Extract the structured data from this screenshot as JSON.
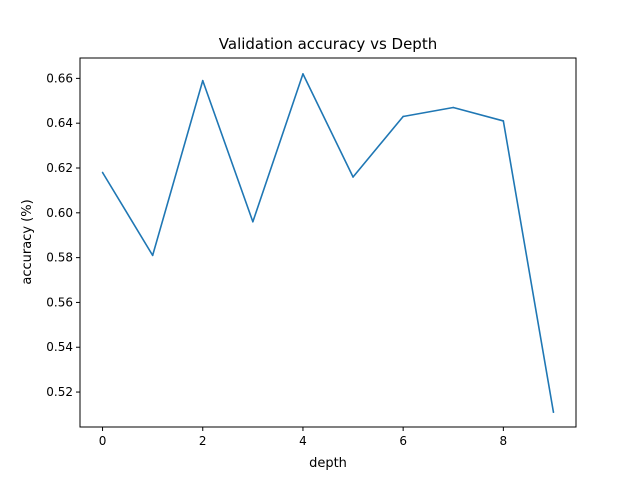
{
  "chart_data": {
    "type": "line",
    "title": "Validation accuracy vs Depth",
    "xlabel": "depth",
    "ylabel": "accuracy (%)",
    "xlim": [
      -0.45,
      9.45
    ],
    "ylim": [
      0.5044,
      0.6691
    ],
    "xticks": [
      0,
      2,
      4,
      6,
      8
    ],
    "yticks": [
      0.52,
      0.54,
      0.56,
      0.58,
      0.6,
      0.62,
      0.64,
      0.66
    ],
    "x": [
      0,
      1,
      2,
      3,
      4,
      5,
      6,
      7,
      8,
      9
    ],
    "series": [
      {
        "values": [
          0.618,
          0.581,
          0.659,
          0.596,
          0.662,
          0.616,
          0.643,
          0.647,
          0.641,
          0.511
        ],
        "color": "#1f77b4"
      }
    ],
    "grid": false
  }
}
